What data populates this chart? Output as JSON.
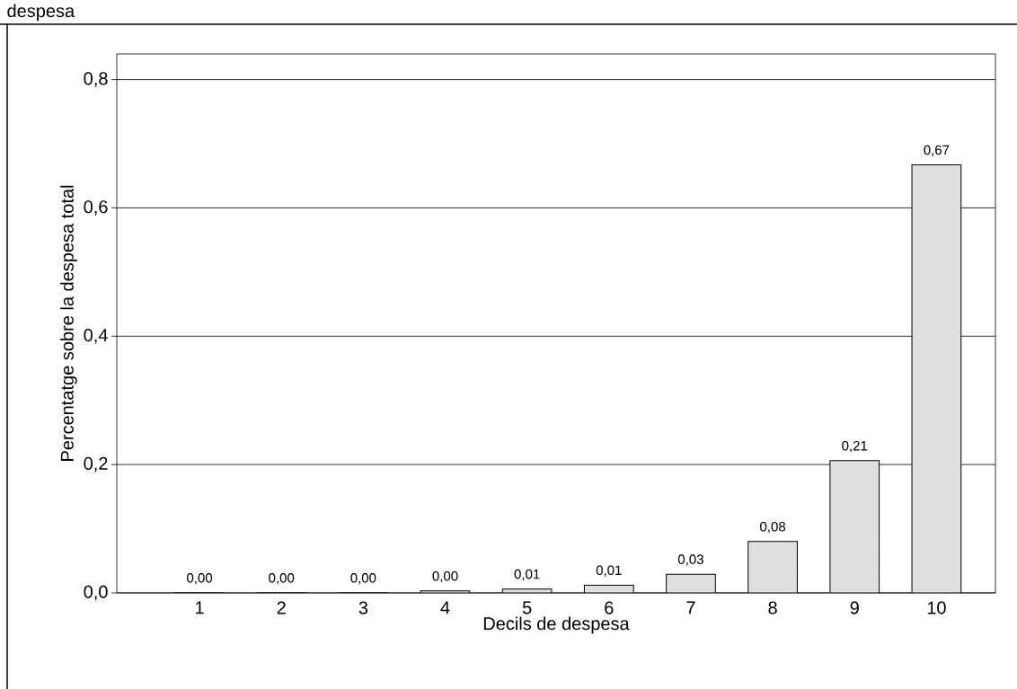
{
  "chart_data": {
    "type": "bar",
    "title": "despesa",
    "xlabel": "Decils de despesa",
    "ylabel": "Percentatge sobre la despesa total",
    "categories": [
      "1",
      "2",
      "3",
      "4",
      "5",
      "6",
      "7",
      "8",
      "9",
      "10"
    ],
    "values": [
      0,
      0,
      0,
      0.003,
      0.006,
      0.012,
      0.029,
      0.08,
      0.206,
      0.667
    ],
    "value_labels": [
      "0,00",
      "0,00",
      "0,00",
      "0,00",
      "0,01",
      "0,01",
      "0,03",
      "0,08",
      "0,21",
      "0,67"
    ],
    "color": "#e0e0e0",
    "ylim": [
      0,
      0.84
    ],
    "yticks": [
      {
        "value": 0,
        "label": "0,0"
      },
      {
        "value": 0.2,
        "label": "0,2"
      },
      {
        "value": 0.4,
        "label": "0,4"
      },
      {
        "value": 0.6,
        "label": "0,6"
      },
      {
        "value": 0.8,
        "label": "0,8"
      }
    ],
    "grid": "y"
  }
}
